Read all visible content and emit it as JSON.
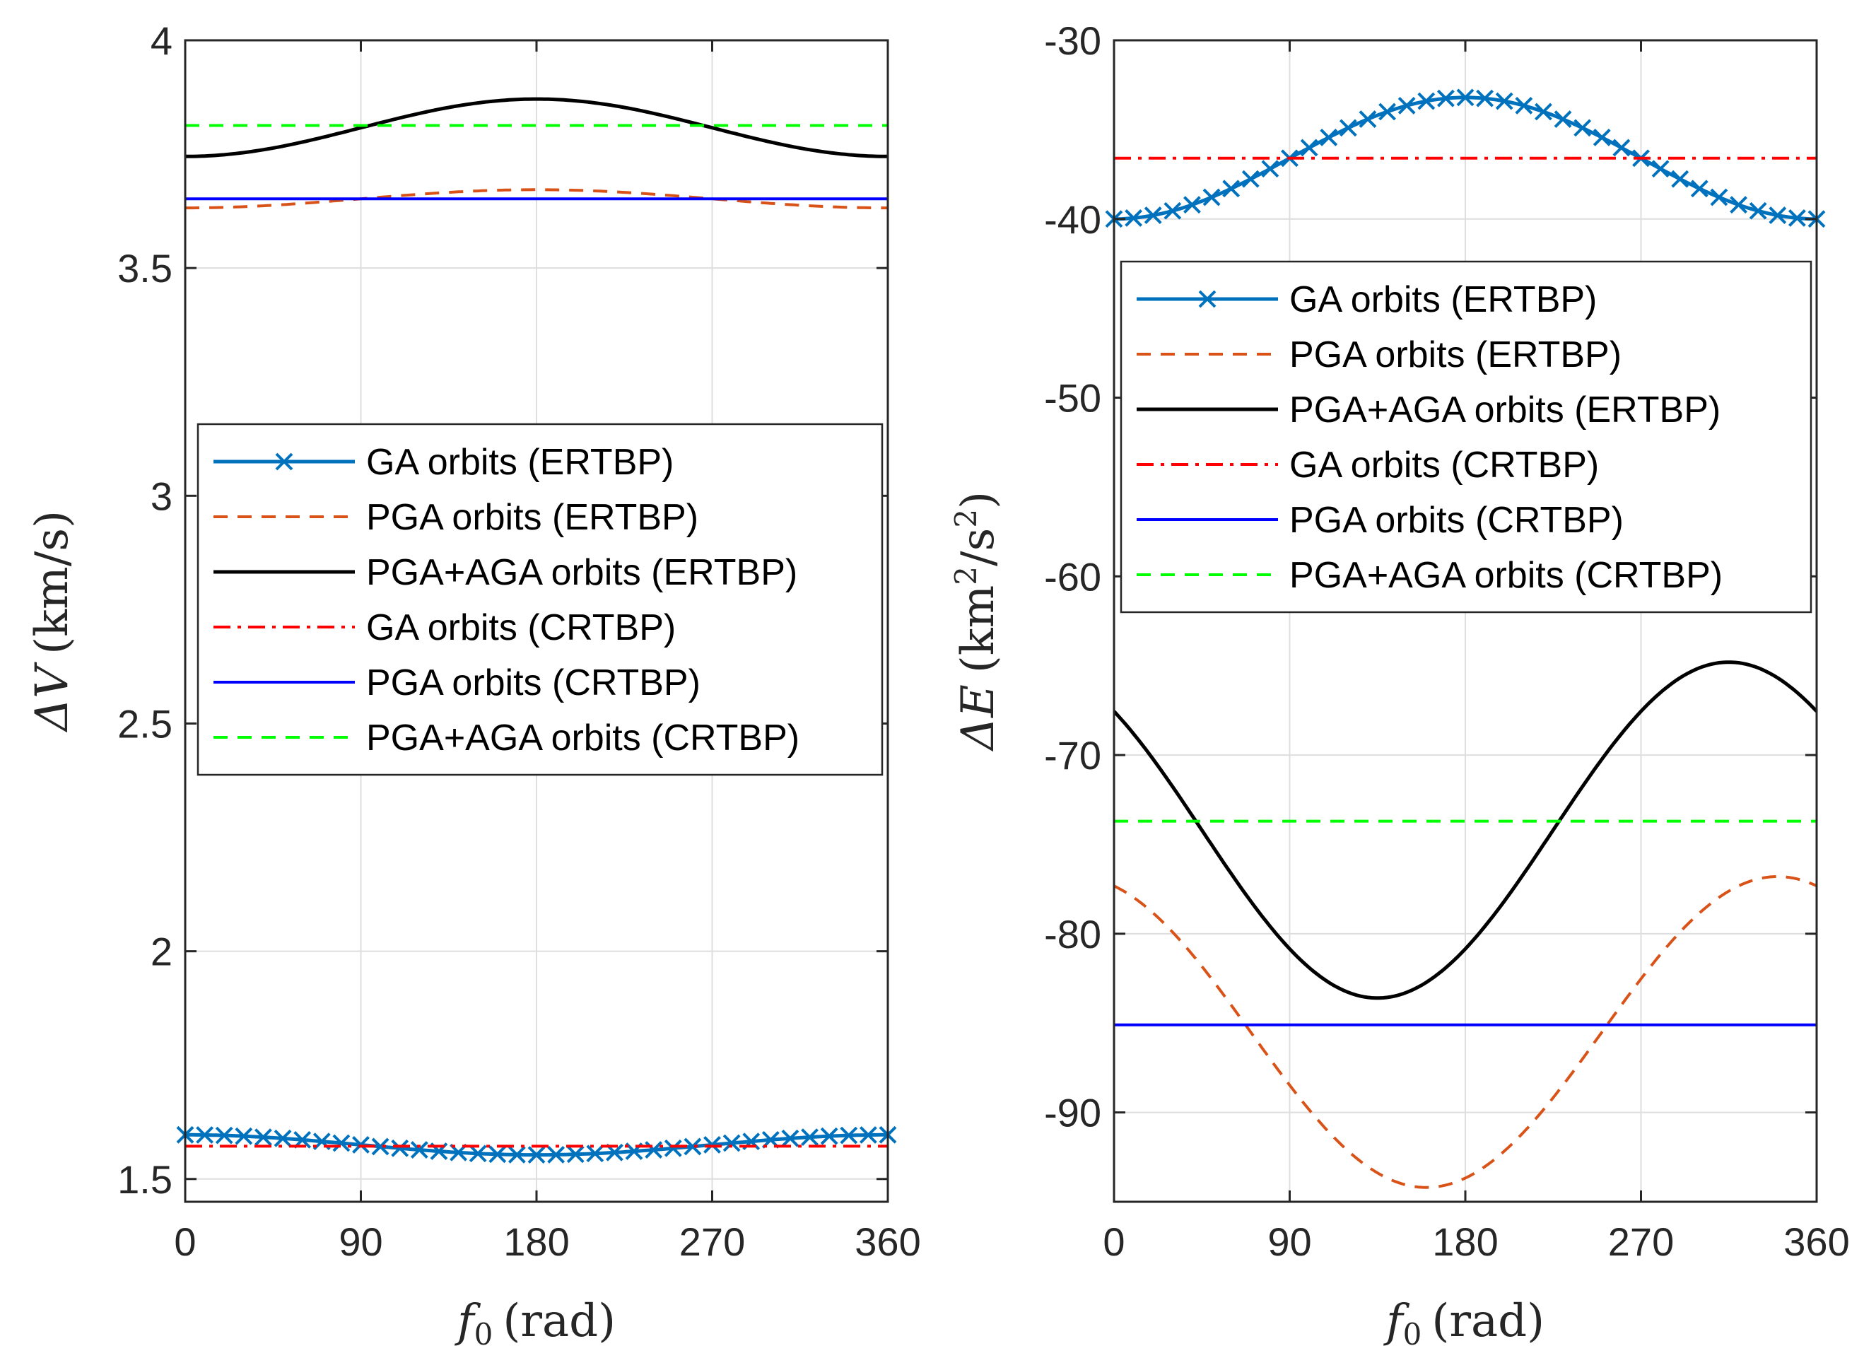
{
  "figure": {
    "panels": [
      "left",
      "right"
    ]
  },
  "chart_data": [
    {
      "type": "line",
      "xlabel": "f0 (rad)",
      "xlabel_parts": {
        "var": "f",
        "sub": "0",
        "unit": "(rad)"
      },
      "ylabel": "ΔV (km/s)",
      "ylabel_parts": {
        "var": "ΔV",
        "unit": "(km/s)"
      },
      "xlim": [
        0,
        360
      ],
      "ylim": [
        1.45,
        4.0
      ],
      "xticks": [
        "0",
        "90",
        "180",
        "270",
        "360"
      ],
      "yticks": [
        "1.5",
        "2",
        "2.5",
        "3",
        "3.5",
        "4"
      ],
      "grid": true,
      "legend_position": "center",
      "series": [
        {
          "name": "GA orbits (ERTBP)",
          "kind": "cosine",
          "mean": 1.575,
          "amp": 0.022,
          "phase": 0,
          "color": "#0072BD",
          "dash": "",
          "width": 5,
          "marker": "x"
        },
        {
          "name": "PGA orbits (ERTBP)",
          "kind": "cosine",
          "mean": 3.652,
          "amp": -0.02,
          "phase": 0,
          "color": "#D95319",
          "dash": "20,14",
          "width": 4
        },
        {
          "name": "PGA+AGA orbits (ERTBP)",
          "kind": "cosine",
          "mean": 3.808,
          "amp": -0.063,
          "phase": 0,
          "color": "#000000",
          "dash": "",
          "width": 5
        },
        {
          "name": "GA orbits (CRTBP)",
          "kind": "const",
          "value": 1.572,
          "color": "#FF0000",
          "dash": "24,10,5,10",
          "width": 4
        },
        {
          "name": "PGA orbits (CRTBP)",
          "kind": "const",
          "value": 3.652,
          "color": "#0000FF",
          "dash": "",
          "width": 4
        },
        {
          "name": "PGA+AGA orbits (CRTBP)",
          "kind": "const",
          "value": 3.813,
          "color": "#00FF00",
          "dash": "20,14",
          "width": 4
        }
      ]
    },
    {
      "type": "line",
      "xlabel": "f0 (rad)",
      "xlabel_parts": {
        "var": "f",
        "sub": "0",
        "unit": "(rad)"
      },
      "ylabel": "ΔE (km2/s2)",
      "ylabel_parts": {
        "var": "ΔE",
        "unit_a": "(km",
        "sup_a": "2",
        "unit_b": "/s",
        "sup_b": "2",
        "unit_c": ")"
      },
      "xlim": [
        0,
        360
      ],
      "ylim": [
        -95,
        -30
      ],
      "xticks": [
        "0",
        "90",
        "180",
        "270",
        "360"
      ],
      "yticks": [
        "-30",
        "-40",
        "-50",
        "-60",
        "-70",
        "-80",
        "-90"
      ],
      "grid": true,
      "legend_position": "upper-left",
      "series": [
        {
          "name": "GA orbits (ERTBP)",
          "kind": "cosine",
          "mean": -36.6,
          "amp": -3.4,
          "phase": 0,
          "color": "#0072BD",
          "dash": "",
          "width": 5,
          "marker": "x"
        },
        {
          "name": "PGA orbits (ERTBP)",
          "kind": "cosine",
          "mean": -85.5,
          "amp": -8.7,
          "phase": 160,
          "color": "#D95319",
          "dash": "20,14",
          "width": 4
        },
        {
          "name": "PGA+AGA orbits (ERTBP)",
          "kind": "cosine",
          "mean": -74.2,
          "amp": -9.4,
          "phase": 135,
          "color": "#000000",
          "dash": "",
          "width": 5
        },
        {
          "name": "GA orbits (CRTBP)",
          "kind": "const",
          "value": -36.6,
          "color": "#FF0000",
          "dash": "24,10,5,10",
          "width": 4
        },
        {
          "name": "PGA orbits (CRTBP)",
          "kind": "const",
          "value": -85.1,
          "color": "#0000FF",
          "dash": "",
          "width": 4
        },
        {
          "name": "PGA+AGA orbits (CRTBP)",
          "kind": "const",
          "value": -73.7,
          "color": "#00FF00",
          "dash": "20,14",
          "width": 4
        }
      ]
    }
  ]
}
